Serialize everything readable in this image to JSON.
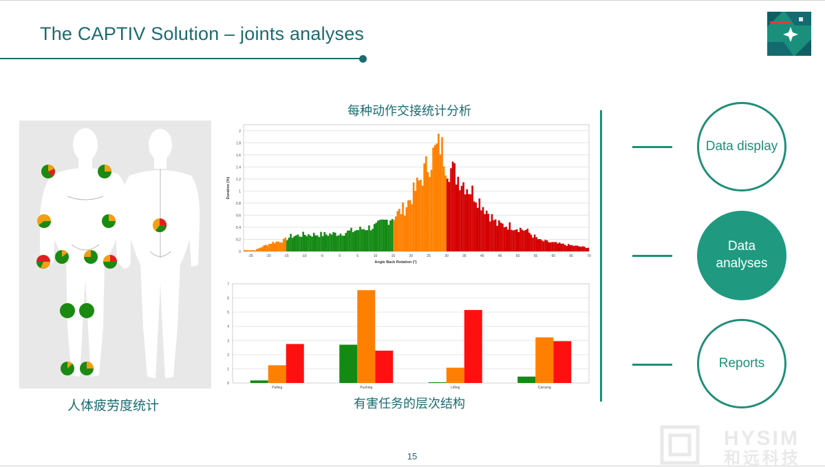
{
  "slide": {
    "title": "The CAPTIV Solution – joints analyses",
    "page_number": "15"
  },
  "left_panel": {
    "caption": "人体疲劳度统计"
  },
  "histogram": {
    "title": "每种动作交接统计分析"
  },
  "bar_chart": {
    "caption": "有害任务的层次结构"
  },
  "nav": {
    "items": [
      {
        "label": "Data display",
        "active": false
      },
      {
        "label": "Data analyses",
        "active": true
      },
      {
        "label": "Reports",
        "active": false
      }
    ]
  },
  "watermark": {
    "brand": "HYSIM",
    "sub": "和远科技"
  },
  "colors": {
    "teal": "#1a6b70",
    "accent": "#1f8e78",
    "green": "#138a13",
    "orange": "#ff8000",
    "red": "#d40000",
    "bright_red": "#ff1010"
  },
  "chart_data": [
    {
      "type": "bar",
      "title": "",
      "xlabel": "Angle Back Rotation (°)",
      "ylabel": "Duration (%)",
      "xlim": [
        -27,
        70
      ],
      "ylim": [
        0,
        2.1
      ],
      "yticks": [
        0,
        0.2,
        0.4,
        0.6,
        0.8,
        1,
        1.2,
        1.4,
        1.6,
        1.8,
        2
      ],
      "xticks": [
        -25,
        -20,
        -15,
        -10,
        -5,
        0,
        5,
        10,
        15,
        20,
        25,
        30,
        35,
        40,
        45,
        50,
        55,
        60,
        65,
        70
      ],
      "grid": true,
      "bin_width": 0.5,
      "zones": [
        {
          "from": -27,
          "to": -15,
          "color": "orange"
        },
        {
          "from": -15,
          "to": 15,
          "color": "green"
        },
        {
          "from": 15,
          "to": 30,
          "color": "orange"
        },
        {
          "from": 30,
          "to": 70,
          "color": "red"
        }
      ],
      "profile": [
        {
          "x": -27,
          "y": 0.02
        },
        {
          "x": -24,
          "y": 0.02
        },
        {
          "x": -22,
          "y": 0.08
        },
        {
          "x": -19,
          "y": 0.15
        },
        {
          "x": -16,
          "y": 0.18
        },
        {
          "x": -14,
          "y": 0.25
        },
        {
          "x": -10,
          "y": 0.28
        },
        {
          "x": -5,
          "y": 0.28
        },
        {
          "x": 0,
          "y": 0.3
        },
        {
          "x": 5,
          "y": 0.36
        },
        {
          "x": 10,
          "y": 0.42
        },
        {
          "x": 15,
          "y": 0.58
        },
        {
          "x": 18,
          "y": 0.72
        },
        {
          "x": 21,
          "y": 1.02
        },
        {
          "x": 24,
          "y": 1.38
        },
        {
          "x": 26,
          "y": 1.6
        },
        {
          "x": 28,
          "y": 1.78
        },
        {
          "x": 30,
          "y": 1.42
        },
        {
          "x": 32,
          "y": 1.3
        },
        {
          "x": 35,
          "y": 1.12
        },
        {
          "x": 38,
          "y": 0.92
        },
        {
          "x": 41,
          "y": 0.68
        },
        {
          "x": 44,
          "y": 0.45
        },
        {
          "x": 48,
          "y": 0.42
        },
        {
          "x": 52,
          "y": 0.35
        },
        {
          "x": 56,
          "y": 0.18
        },
        {
          "x": 62,
          "y": 0.12
        },
        {
          "x": 70,
          "y": 0.06
        }
      ]
    },
    {
      "type": "bar",
      "title": "",
      "xlabel": "",
      "ylabel": "",
      "ylim": [
        0,
        7
      ],
      "yticks": [
        0,
        1,
        2,
        3,
        4,
        5,
        6,
        7
      ],
      "grid": true,
      "categories": [
        "Pulling",
        "Pushing",
        "Lifting",
        "Carrying"
      ],
      "series": [
        {
          "color": "green",
          "values": [
            0.18,
            2.7,
            0.05,
            0.45
          ]
        },
        {
          "color": "orange",
          "values": [
            1.25,
            6.55,
            1.08,
            3.22
          ]
        },
        {
          "color": "bright_red",
          "values": [
            2.75,
            2.28,
            5.15,
            2.95
          ]
        }
      ]
    }
  ]
}
